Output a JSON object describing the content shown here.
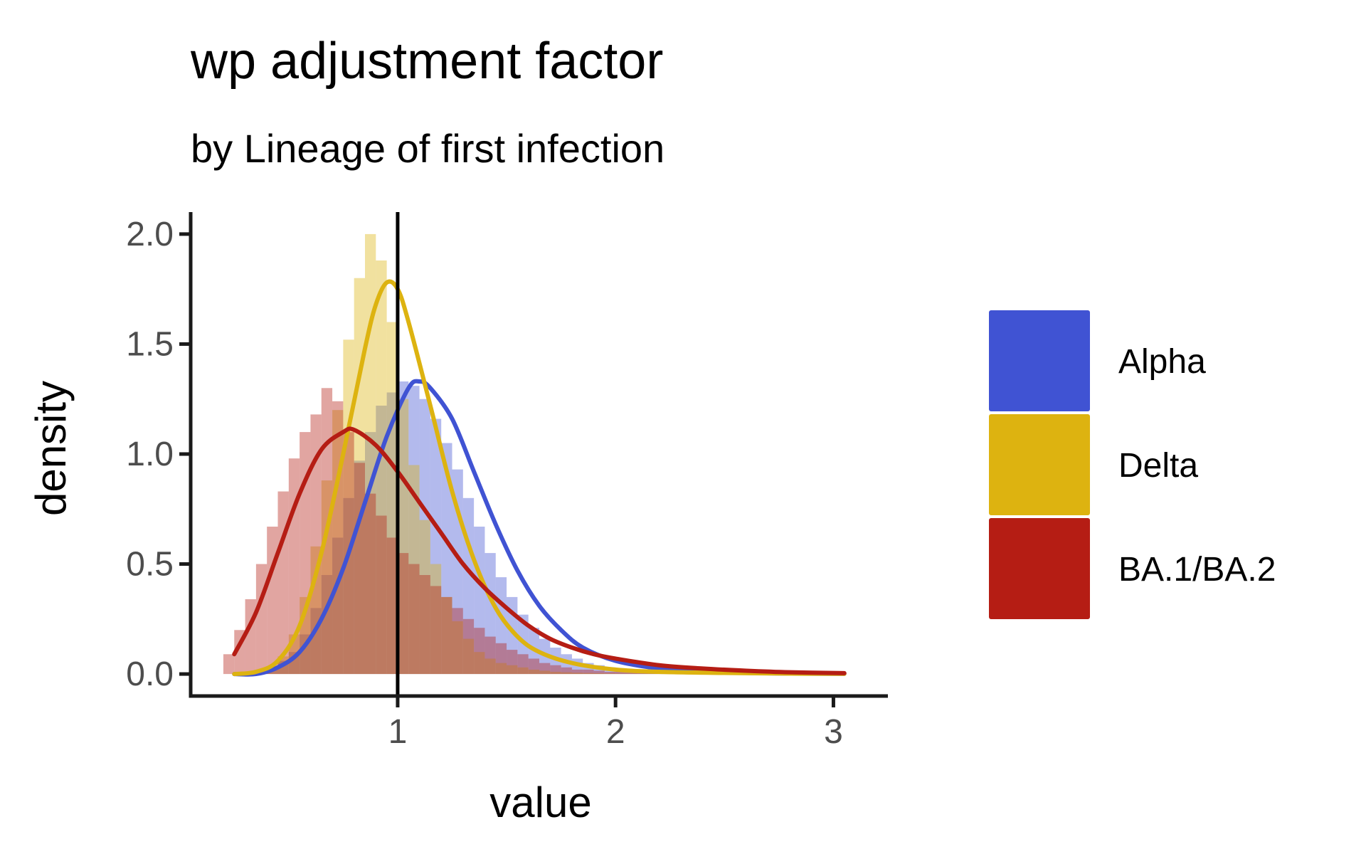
{
  "chart_data": {
    "type": "histogram+density",
    "title": "wp adjustment factor",
    "subtitle": "by Lineage of first infection",
    "xlabel": "value",
    "ylabel": "density",
    "xlim": [
      0.05,
      3.25
    ],
    "ylim": [
      -0.1,
      2.1
    ],
    "x_ticks": [
      1,
      2,
      3
    ],
    "x_tick_labels": [
      "1",
      "2",
      "3"
    ],
    "y_ticks": [
      0,
      0.5,
      1,
      1.5,
      2
    ],
    "y_tick_labels": [
      "0.0",
      "0.5",
      "1.0",
      "1.5",
      "2.0"
    ],
    "reference_line_x": 1,
    "grid": false,
    "legend_position": "right",
    "bin_width": 0.05,
    "series": [
      {
        "name": "Alpha",
        "color": "#4053d3",
        "hist_start": 0.2,
        "hist": [
          0.0,
          0.0,
          0.0,
          0.01,
          0.03,
          0.06,
          0.1,
          0.18,
          0.3,
          0.45,
          0.62,
          0.8,
          0.97,
          1.1,
          1.22,
          1.28,
          1.33,
          1.31,
          1.25,
          1.16,
          1.05,
          0.93,
          0.8,
          0.67,
          0.55,
          0.44,
          0.35,
          0.27,
          0.21,
          0.16,
          0.12,
          0.09,
          0.07,
          0.05,
          0.04,
          0.03,
          0.025,
          0.02,
          0.015,
          0.012,
          0.01,
          0.008,
          0.006,
          0.005,
          0.004,
          0.003,
          0.003,
          0.002,
          0.002,
          0.002,
          0.001,
          0.001,
          0.001,
          0.001,
          0.001,
          0.001,
          0.001
        ],
        "density_x": [
          0.25,
          0.35,
          0.45,
          0.55,
          0.65,
          0.75,
          0.85,
          0.95,
          1.05,
          1.1,
          1.15,
          1.25,
          1.35,
          1.45,
          1.55,
          1.65,
          1.75,
          1.85,
          2.0,
          2.2,
          2.4,
          2.6,
          2.8,
          3.05
        ],
        "density_y": [
          0.0,
          0.0,
          0.03,
          0.1,
          0.25,
          0.48,
          0.78,
          1.08,
          1.3,
          1.33,
          1.3,
          1.16,
          0.92,
          0.68,
          0.47,
          0.31,
          0.2,
          0.12,
          0.06,
          0.025,
          0.01,
          0.005,
          0.002,
          0.001
        ]
      },
      {
        "name": "Delta",
        "color": "#ddb310",
        "hist_start": 0.2,
        "hist": [
          0.0,
          0.0,
          0.0,
          0.01,
          0.03,
          0.08,
          0.18,
          0.35,
          0.58,
          0.88,
          1.2,
          1.52,
          1.8,
          2.0,
          1.88,
          1.6,
          1.25,
          0.95,
          0.7,
          0.5,
          0.35,
          0.24,
          0.16,
          0.1,
          0.07,
          0.05,
          0.04,
          0.03,
          0.02,
          0.015,
          0.01,
          0.008,
          0.006,
          0.005,
          0.004,
          0.003,
          0.002,
          0.002,
          0.001,
          0.001,
          0.001
        ],
        "density_x": [
          0.25,
          0.35,
          0.45,
          0.55,
          0.65,
          0.75,
          0.85,
          0.9,
          0.95,
          1.0,
          1.05,
          1.15,
          1.25,
          1.35,
          1.45,
          1.55,
          1.65,
          1.8,
          2.0,
          2.2,
          2.5,
          2.8,
          3.05
        ],
        "density_y": [
          0.0,
          0.01,
          0.06,
          0.22,
          0.55,
          1.0,
          1.48,
          1.68,
          1.78,
          1.75,
          1.6,
          1.22,
          0.83,
          0.52,
          0.3,
          0.17,
          0.1,
          0.05,
          0.02,
          0.01,
          0.005,
          0.002,
          0.001
        ]
      },
      {
        "name": "BA.1/BA.2",
        "color": "#b51d14",
        "hist_start": 0.2,
        "hist": [
          0.09,
          0.2,
          0.34,
          0.5,
          0.67,
          0.83,
          0.98,
          1.1,
          1.18,
          1.3,
          1.24,
          1.1,
          0.96,
          0.82,
          0.72,
          0.62,
          0.55,
          0.5,
          0.45,
          0.4,
          0.35,
          0.3,
          0.25,
          0.21,
          0.17,
          0.14,
          0.11,
          0.09,
          0.07,
          0.05,
          0.04,
          0.03,
          0.02,
          0.02,
          0.015,
          0.01,
          0.01,
          0.008,
          0.006,
          0.005,
          0.004,
          0.003,
          0.002,
          0.002
        ],
        "density_x": [
          0.25,
          0.35,
          0.45,
          0.55,
          0.65,
          0.75,
          0.8,
          0.9,
          1.0,
          1.1,
          1.2,
          1.3,
          1.4,
          1.5,
          1.6,
          1.7,
          1.8,
          1.9,
          2.0,
          2.2,
          2.4,
          2.6,
          2.8,
          3.05
        ],
        "density_y": [
          0.09,
          0.28,
          0.55,
          0.82,
          1.02,
          1.1,
          1.11,
          1.04,
          0.92,
          0.78,
          0.64,
          0.5,
          0.39,
          0.3,
          0.22,
          0.16,
          0.12,
          0.09,
          0.07,
          0.04,
          0.025,
          0.015,
          0.008,
          0.004
        ]
      }
    ]
  }
}
